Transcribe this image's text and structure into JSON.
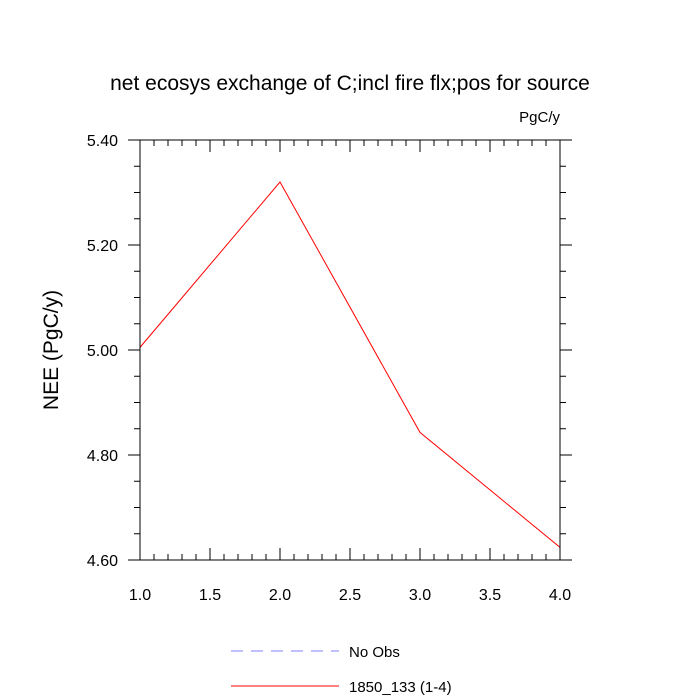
{
  "chart_data": {
    "type": "line",
    "title": "net ecosys exchange of C;incl fire flx;pos for source",
    "units": "PgC/y",
    "xlabel": "",
    "ylabel": "NEE  (PgC/y)",
    "xlim": [
      1.0,
      4.0
    ],
    "ylim": [
      4.6,
      5.4
    ],
    "x_ticks": [
      1.0,
      1.5,
      2.0,
      2.5,
      3.0,
      3.5,
      4.0
    ],
    "x_tick_labels": [
      "1.0",
      "1.5",
      "2.0",
      "2.5",
      "3.0",
      "3.5",
      "4.0"
    ],
    "y_ticks": [
      4.6,
      4.8,
      5.0,
      5.2,
      5.4
    ],
    "y_tick_labels": [
      "4.60",
      "4.80",
      "5.00",
      "5.20",
      "5.40"
    ],
    "grid": false,
    "legend_position": "bottom",
    "series": [
      {
        "name": "No Obs",
        "color": "#8080ff",
        "style": "dashed",
        "x": [],
        "y": []
      },
      {
        "name": "1850_133 (1-4)",
        "color": "#ff0000",
        "style": "solid",
        "x": [
          1.0,
          2.0,
          3.0,
          4.0
        ],
        "y": [
          5.005,
          5.32,
          4.843,
          4.624
        ]
      }
    ]
  }
}
